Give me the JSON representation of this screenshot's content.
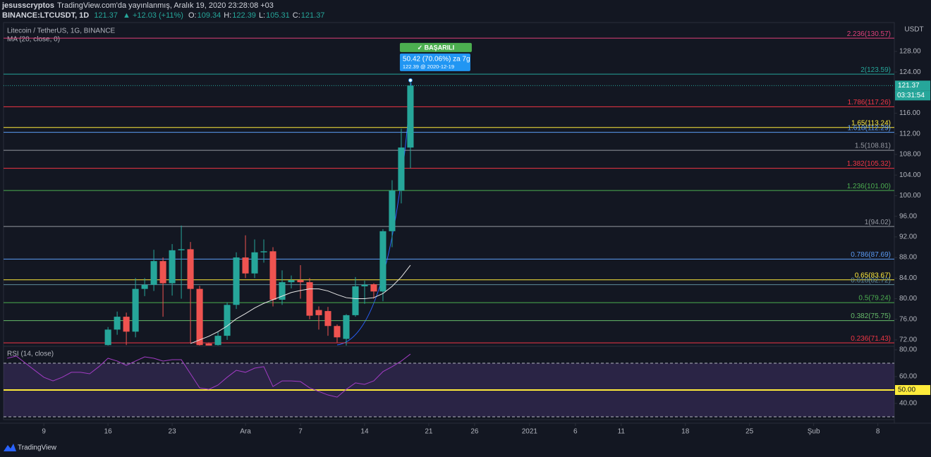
{
  "header": {
    "author": "jesusscryptos",
    "published": "TradingView.com'da yayınlanmış, Aralık 19, 2020 23:28:08 +03",
    "symbol": "BINANCE:LTCUSDT, 1D",
    "last": "121.37",
    "change": "▲ +12.03 (+11%)",
    "ohlc": [
      {
        "key": "O:",
        "val": "109.34"
      },
      {
        "key": "H:",
        "val": "122.39"
      },
      {
        "key": "L:",
        "val": "105.31"
      },
      {
        "key": "C:",
        "val": "121.37"
      }
    ]
  },
  "footer": {
    "brand": "TradingView"
  },
  "chart_data": [
    {
      "type": "candlestick",
      "title": "Litecoin / TetherUS, 1G, BINANCE",
      "unit": "USDT",
      "up_color": "#26a69a",
      "down_color": "#ef5350",
      "x": [
        "2020-11-16",
        "2020-11-17",
        "2020-11-18",
        "2020-11-19",
        "2020-11-20",
        "2020-11-21",
        "2020-11-22",
        "2020-11-23",
        "2020-11-24",
        "2020-11-25",
        "2020-11-26",
        "2020-11-27",
        "2020-11-28",
        "2020-11-29",
        "2020-11-30",
        "2020-12-01",
        "2020-12-02",
        "2020-12-03",
        "2020-12-04",
        "2020-12-05",
        "2020-12-06",
        "2020-12-07",
        "2020-12-08",
        "2020-12-09",
        "2020-12-10",
        "2020-12-11",
        "2020-12-12",
        "2020-12-13",
        "2020-12-14",
        "2020-12-15",
        "2020-12-16",
        "2020-12-17",
        "2020-12-18",
        "2020-12-19"
      ],
      "open": [
        71.0,
        74.0,
        76.5,
        73.6,
        81.9,
        82.7,
        87.3,
        83.0,
        89.4,
        89.6,
        81.9,
        71.3,
        71.0,
        72.8,
        78.8,
        88.0,
        84.9,
        89.0,
        89.2,
        79.8,
        83.2,
        83.6,
        83.2,
        77.8,
        77.6,
        74.7,
        72.2,
        76.8,
        82.4,
        82.8,
        81.4,
        93.1,
        101.0,
        109.34
      ],
      "high": [
        74.5,
        77.5,
        77.3,
        84.0,
        84.0,
        89.5,
        88.0,
        90.6,
        94.2,
        91.0,
        82.5,
        71.5,
        73.5,
        79.3,
        89.0,
        92.3,
        91.5,
        91.5,
        90.0,
        85.5,
        84.5,
        86.5,
        84.0,
        78.5,
        78.4,
        75.0,
        77.0,
        84.2,
        83.5,
        83.0,
        93.5,
        103.0,
        113.0,
        122.39
      ],
      "low": [
        70.5,
        73.0,
        71.0,
        72.5,
        80.5,
        81.5,
        76.5,
        80.6,
        80.0,
        71.5,
        70.8,
        70.5,
        70.5,
        72.0,
        78.0,
        84.0,
        84.0,
        87.0,
        78.5,
        78.8,
        82.0,
        80.0,
        76.0,
        74.0,
        72.8,
        71.5,
        70.9,
        76.5,
        79.0,
        80.0,
        79.5,
        90.0,
        98.5,
        105.31
      ],
      "close": [
        74.0,
        76.5,
        73.6,
        81.9,
        82.7,
        87.3,
        83.0,
        89.4,
        89.6,
        81.9,
        71.0,
        70.9,
        72.8,
        78.8,
        88.0,
        84.9,
        89.0,
        89.2,
        79.8,
        83.2,
        83.6,
        83.2,
        76.7,
        76.8,
        74.7,
        72.5,
        76.8,
        82.4,
        82.7,
        81.4,
        93.1,
        101.0,
        109.34,
        121.37
      ],
      "series": [
        {
          "name": "MA (20, close, 0)",
          "color": "#e8e8e8",
          "x": [
            "2020-11-25",
            "2020-11-26",
            "2020-11-27",
            "2020-11-28",
            "2020-11-29",
            "2020-11-30",
            "2020-12-01",
            "2020-12-02",
            "2020-12-03",
            "2020-12-04",
            "2020-12-05",
            "2020-12-06",
            "2020-12-07",
            "2020-12-08",
            "2020-12-09",
            "2020-12-10",
            "2020-12-11",
            "2020-12-12",
            "2020-12-13",
            "2020-12-14",
            "2020-12-15",
            "2020-12-16",
            "2020-12-17",
            "2020-12-18",
            "2020-12-19"
          ],
          "values": [
            71.3,
            72.0,
            72.7,
            73.6,
            74.7,
            76.1,
            77.1,
            78.2,
            79.1,
            79.8,
            80.5,
            81.2,
            81.6,
            81.9,
            81.9,
            81.5,
            80.8,
            80.2,
            80.0,
            80.0,
            80.2,
            81.0,
            82.4,
            84.2,
            86.5
          ]
        }
      ],
      "levels": [
        {
          "value": 130.57,
          "label": "2.236(130.57)",
          "color": "#e0407a"
        },
        {
          "value": 123.59,
          "label": "2(123.59)",
          "color": "#26a69a"
        },
        {
          "value": 117.26,
          "label": "1.786(117.26)",
          "color": "#f23645"
        },
        {
          "value": 113.24,
          "label": "1.65(113.24)",
          "color": "#ffeb3b"
        },
        {
          "value": 112.29,
          "label": "1.618(112.29)",
          "color": "#5b9cf6"
        },
        {
          "value": 108.81,
          "label": "1.5(108.81)",
          "color": "#9598a1"
        },
        {
          "value": 105.32,
          "label": "1.382(105.32)",
          "color": "#f23645"
        },
        {
          "value": 101.0,
          "label": "1.236(101.00)",
          "color": "#4caf50"
        },
        {
          "value": 94.02,
          "label": "1(94.02)",
          "color": "#9598a1"
        },
        {
          "value": 87.69,
          "label": "0.786(87.69)",
          "color": "#5b9cf6"
        },
        {
          "value": 83.67,
          "label": "0.65(83.67)",
          "color": "#ffeb3b"
        },
        {
          "value": 82.72,
          "label": "0.618(82.72)",
          "color": "#5d8a9a"
        },
        {
          "value": 79.24,
          "label": "0.5(79.24)",
          "color": "#4caf50"
        },
        {
          "value": 75.75,
          "label": "0.382(75.75)",
          "color": "#66bb6a"
        },
        {
          "value": 71.43,
          "label": "0.236(71.43)",
          "color": "#f23645"
        }
      ],
      "last_price": {
        "value": 121.37,
        "label": "121.37",
        "color": "#26a69a"
      },
      "countdown": "03:31:54",
      "annotation": {
        "badge": "✓ BAŞARILI",
        "text": "50.42 (70.06%) za 7g",
        "sub": "122.39 @ 2020-12-19"
      },
      "xlim": [
        "2020-11-04T14:24",
        "2021-02-09T19:12"
      ],
      "xticks": [
        {
          "value": "2020-11-09",
          "label": "9"
        },
        {
          "value": "2020-11-16",
          "label": "16"
        },
        {
          "value": "2020-11-23",
          "label": "23"
        },
        {
          "value": "2020-12-01",
          "label": "Ara"
        },
        {
          "value": "2020-12-07",
          "label": "7"
        },
        {
          "value": "2020-12-14",
          "label": "14"
        },
        {
          "value": "2020-12-21",
          "label": "21"
        },
        {
          "value": "2020-12-26",
          "label": "26"
        },
        {
          "value": "2021-01-01",
          "label": "2021"
        },
        {
          "value": "2021-01-06",
          "label": "6"
        },
        {
          "value": "2021-01-11",
          "label": "11"
        },
        {
          "value": "2021-01-18",
          "label": "18"
        },
        {
          "value": "2021-01-25",
          "label": "25"
        },
        {
          "value": "2021-02-01",
          "label": "Şub"
        },
        {
          "value": "2021-02-08",
          "label": "8"
        }
      ],
      "ylim": [
        70.9,
        133.6
      ],
      "yticks": [
        {
          "value": 72,
          "label": "72.00"
        },
        {
          "value": 76,
          "label": "76.00"
        },
        {
          "value": 80,
          "label": "80.00"
        },
        {
          "value": 84,
          "label": "84.00"
        },
        {
          "value": 88,
          "label": "88.00"
        },
        {
          "value": 92,
          "label": "92.00"
        },
        {
          "value": 96,
          "label": "96.00"
        },
        {
          "value": 100,
          "label": "100.00"
        },
        {
          "value": 104,
          "label": "104.00"
        },
        {
          "value": 108,
          "label": "108.00"
        },
        {
          "value": 112,
          "label": "112.00"
        },
        {
          "value": 116,
          "label": "116.00"
        },
        {
          "value": 120,
          "label": "120.00"
        },
        {
          "value": 124,
          "label": "124.00"
        },
        {
          "value": 128,
          "label": "128.00"
        }
      ]
    },
    {
      "type": "line",
      "title": "RSI (14, close)",
      "series": [
        {
          "color": "#a23cc4",
          "x": [
            "2020-11-05",
            "2020-11-06",
            "2020-11-07",
            "2020-11-08",
            "2020-11-09",
            "2020-11-10",
            "2020-11-11",
            "2020-11-12",
            "2020-11-13",
            "2020-11-14",
            "2020-11-15",
            "2020-11-16",
            "2020-11-17",
            "2020-11-18",
            "2020-11-19",
            "2020-11-20",
            "2020-11-21",
            "2020-11-22",
            "2020-11-23",
            "2020-11-24",
            "2020-11-25",
            "2020-11-26",
            "2020-11-27",
            "2020-11-28",
            "2020-11-29",
            "2020-11-30",
            "2020-12-01",
            "2020-12-02",
            "2020-12-03",
            "2020-12-04",
            "2020-12-05",
            "2020-12-06",
            "2020-12-07",
            "2020-12-08",
            "2020-12-09",
            "2020-12-10",
            "2020-12-11",
            "2020-12-12",
            "2020-12-13",
            "2020-12-14",
            "2020-12-15",
            "2020-12-16",
            "2020-12-17",
            "2020-12-18",
            "2020-12-19"
          ],
          "values": [
            73.7,
            75.3,
            70.0,
            64.7,
            59.5,
            56.8,
            59.5,
            63.2,
            63.2,
            62.1,
            67.4,
            73.7,
            71.6,
            68.4,
            71.6,
            74.7,
            73.7,
            71.6,
            72.6,
            72.6,
            62.1,
            51.6,
            50.5,
            53.7,
            59.5,
            64.7,
            63.2,
            66.3,
            67.4,
            52.6,
            56.8,
            56.8,
            56.3,
            51.6,
            48.9,
            46.3,
            44.7,
            50.5,
            55.3,
            54.2,
            56.8,
            63.7,
            67.4,
            71.6,
            76.8
          ]
        }
      ],
      "bands": [
        30,
        70
      ],
      "midline": {
        "value": 50,
        "label": "50.00",
        "color": "#ffeb3b"
      },
      "xlim": [
        "2020-11-04T14:24",
        "2021-02-09T19:12"
      ],
      "ylim": [
        27.9,
        82.1
      ],
      "yticks": [
        {
          "value": 40,
          "label": "40.00"
        },
        {
          "value": 60,
          "label": "60.00"
        },
        {
          "value": 80,
          "label": "80.00"
        }
      ]
    }
  ]
}
